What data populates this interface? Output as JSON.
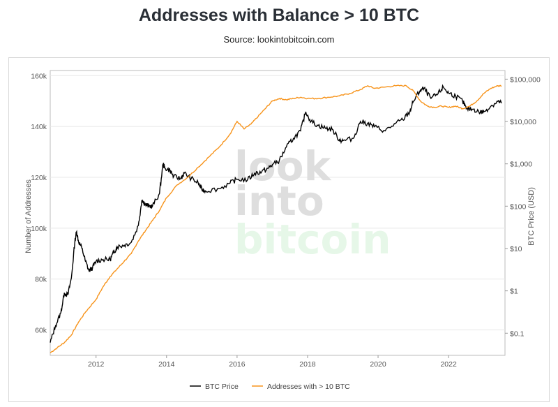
{
  "header": {
    "title": "Addresses with Balance > 10 BTC",
    "source": "Source: lookintobitcoin.com"
  },
  "watermark": {
    "line1": "look",
    "line2": "into",
    "line3": "bitcoin"
  },
  "colors": {
    "price": "#000000",
    "addresses": "#f7931a",
    "grid": "#e8e8e8",
    "axis": "#555555"
  },
  "chart_data": {
    "type": "line",
    "xlabel": "",
    "ylabel": "Number of Addresses",
    "y2label": "BTC Price (USD)",
    "xlim": [
      2010.7,
      2023.6
    ],
    "ylim": [
      50000,
      162000
    ],
    "y2_scale": "log",
    "y2lim": [
      0.03,
      160000
    ],
    "x_ticks": [
      "2012",
      "2014",
      "2016",
      "2018",
      "2020",
      "2022"
    ],
    "y_ticks": [
      "60k",
      "80k",
      "100k",
      "120k",
      "140k",
      "160k"
    ],
    "y2_ticks": [
      "$0.1",
      "$1",
      "$10",
      "$100",
      "$1,000",
      "$10,000",
      "$100,000"
    ],
    "grid": true,
    "legend_position": "bottom-center",
    "series": [
      {
        "name": "BTC Price",
        "axis": "right",
        "x": [
          2010.7,
          2010.85,
          2011.0,
          2011.1,
          2011.2,
          2011.3,
          2011.4,
          2011.45,
          2011.5,
          2011.6,
          2011.7,
          2011.8,
          2011.9,
          2012.0,
          2012.2,
          2012.4,
          2012.5,
          2012.6,
          2012.8,
          2013.0,
          2013.2,
          2013.3,
          2013.4,
          2013.5,
          2013.6,
          2013.8,
          2013.9,
          2013.95,
          2014.1,
          2014.2,
          2014.4,
          2014.5,
          2014.7,
          2014.9,
          2015.0,
          2015.1,
          2015.5,
          2015.8,
          2016.0,
          2016.3,
          2016.5,
          2016.7,
          2016.9,
          2017.0,
          2017.2,
          2017.4,
          2017.6,
          2017.8,
          2017.95,
          2018.1,
          2018.3,
          2018.5,
          2018.7,
          2018.9,
          2019.0,
          2019.3,
          2019.5,
          2019.7,
          2019.9,
          2020.2,
          2020.5,
          2020.7,
          2020.9,
          2021.0,
          2021.2,
          2021.3,
          2021.5,
          2021.7,
          2021.85,
          2022.0,
          2022.2,
          2022.4,
          2022.5,
          2022.7,
          2022.9,
          2023.0,
          2023.2,
          2023.4,
          2023.5
        ],
        "values": [
          0.06,
          0.15,
          0.3,
          0.9,
          0.8,
          2.0,
          15,
          25,
          15,
          10,
          5,
          3,
          3.5,
          5,
          5.5,
          5.5,
          8,
          11,
          12,
          14,
          35,
          140,
          110,
          100,
          100,
          200,
          1000,
          800,
          700,
          500,
          450,
          600,
          450,
          350,
          250,
          230,
          260,
          350,
          430,
          420,
          600,
          650,
          800,
          950,
          1200,
          2500,
          4000,
          6000,
          17000,
          10000,
          8000,
          7000,
          6500,
          3700,
          3500,
          4000,
          10000,
          9000,
          7500,
          6000,
          9000,
          11000,
          17000,
          30000,
          55000,
          60000,
          35000,
          45000,
          65000,
          47000,
          40000,
          30000,
          20000,
          19500,
          16500,
          17000,
          23000,
          30000,
          27000
        ]
      },
      {
        "name": "Addresses with > 10 BTC",
        "axis": "left",
        "x": [
          2010.7,
          2010.9,
          2011.1,
          2011.3,
          2011.5,
          2011.7,
          2012.0,
          2012.2,
          2012.4,
          2012.6,
          2012.8,
          2013.0,
          2013.2,
          2013.4,
          2013.6,
          2013.8,
          2014.0,
          2014.3,
          2014.6,
          2014.9,
          2015.2,
          2015.5,
          2015.8,
          2016.0,
          2016.2,
          2016.4,
          2016.6,
          2016.8,
          2017.0,
          2017.2,
          2017.4,
          2017.6,
          2017.8,
          2018.0,
          2018.3,
          2018.6,
          2018.9,
          2019.2,
          2019.5,
          2019.7,
          2019.9,
          2020.2,
          2020.5,
          2020.8,
          2021.0,
          2021.2,
          2021.4,
          2021.6,
          2021.8,
          2022.0,
          2022.2,
          2022.4,
          2022.6,
          2022.8,
          2023.0,
          2023.2,
          2023.4,
          2023.5
        ],
        "values": [
          51000,
          53000,
          55000,
          58000,
          63000,
          67000,
          72000,
          77000,
          81000,
          84000,
          87000,
          90000,
          95000,
          99000,
          103000,
          107000,
          112000,
          117000,
          120000,
          124000,
          128000,
          132000,
          137000,
          142000,
          139000,
          141000,
          144000,
          147000,
          150000,
          151000,
          150500,
          151000,
          151500,
          151000,
          151000,
          151500,
          152000,
          153000,
          154500,
          156000,
          155000,
          155500,
          156000,
          156000,
          154000,
          150000,
          148000,
          147500,
          148000,
          147500,
          148000,
          147000,
          148000,
          150000,
          153000,
          155000,
          156000,
          156000
        ]
      }
    ]
  },
  "legend": {
    "price_label": "BTC Price",
    "addresses_label": "Addresses with > 10 BTC"
  }
}
